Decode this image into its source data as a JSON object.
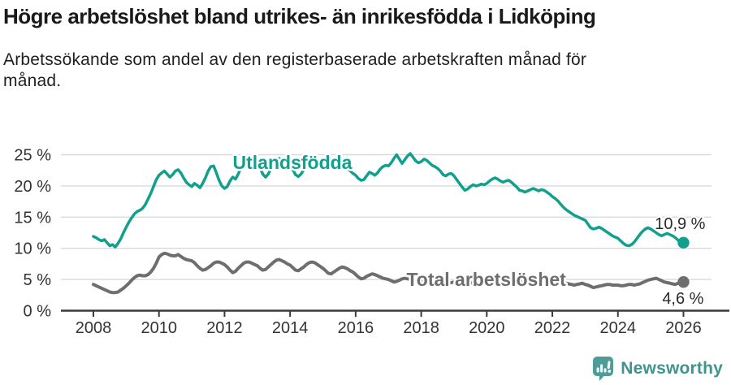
{
  "header": {
    "title": "Högre arbetslöshet bland utrikes- än inrikesfödda i Lidköping",
    "subtitle": "Arbetssökande som andel av den registerbaserade arbetskraften månad för\nmånad."
  },
  "colors": {
    "title_text": "#1a1a1a",
    "axis_text": "#333333",
    "grid_line": "#d9d9d9",
    "axis_line": "#3a3a3a",
    "background": "#ffffff"
  },
  "chart_data": {
    "type": "line",
    "title": "Högre arbetslöshet bland utrikes- än inrikesfödda i Lidköping",
    "subtitle": "Arbetssökande som andel av den registerbaserade arbetskraften månad för månad.",
    "x_unit": "month",
    "x_start_year": 2008,
    "x_end_year": 2026,
    "x_tick_years": [
      2008,
      2010,
      2012,
      2014,
      2016,
      2018,
      2020,
      2022,
      2024,
      2026
    ],
    "y_ticks": [
      0,
      5,
      10,
      15,
      20,
      25
    ],
    "y_tick_suffix": " %",
    "ylim": [
      0,
      26.5
    ],
    "grid": true,
    "legend_position": "inline-labels",
    "series": [
      {
        "name": "Utlandsfödda",
        "color": "#12a08e",
        "line_width": 3.5,
        "end_label": "10,9 %",
        "last_value": 10.9,
        "label_anchor": {
          "year": 2012.25,
          "percent": 22.7
        },
        "end_label_offset": {
          "dx": 27,
          "dy": -17
        },
        "values": [
          11.9,
          11.7,
          11.4,
          11.2,
          11.4,
          10.9,
          10.4,
          10.6,
          10.2,
          10.8,
          11.5,
          12.5,
          13.4,
          14.2,
          14.9,
          15.5,
          15.9,
          16.1,
          16.4,
          17.0,
          17.9,
          18.8,
          19.9,
          21.0,
          21.7,
          22.1,
          22.4,
          21.9,
          21.4,
          21.8,
          22.4,
          22.6,
          22.1,
          21.3,
          20.6,
          20.2,
          19.9,
          20.4,
          20.1,
          19.7,
          20.4,
          21.3,
          22.4,
          23.1,
          23.2,
          22.1,
          20.9,
          20.0,
          19.6,
          19.9,
          20.8,
          21.4,
          21.1,
          21.9,
          22.9,
          23.7,
          24.2,
          24.4,
          24.4,
          24.3,
          23.8,
          22.9,
          21.9,
          21.4,
          21.9,
          22.8,
          23.6,
          24.2,
          24.4,
          24.3,
          23.9,
          23.5,
          23.3,
          22.6,
          21.8,
          21.5,
          21.9,
          22.6,
          23.3,
          23.8,
          24.1,
          24.2,
          24.0,
          23.8,
          23.6,
          23.3,
          23.1,
          23.3,
          23.6,
          23.8,
          23.9,
          23.7,
          23.3,
          22.8,
          22.4,
          22.0,
          21.7,
          21.2,
          20.9,
          21.0,
          21.6,
          22.2,
          22.0,
          21.7,
          22.1,
          22.7,
          23.1,
          23.3,
          23.2,
          23.7,
          24.4,
          25.0,
          24.3,
          23.6,
          24.2,
          24.8,
          25.2,
          24.6,
          24.0,
          23.7,
          23.9,
          24.3,
          24.1,
          23.7,
          23.3,
          23.1,
          22.8,
          22.4,
          21.8,
          21.6,
          21.9,
          22.0,
          21.6,
          21.0,
          20.4,
          19.8,
          19.3,
          19.5,
          19.9,
          20.2,
          20.0,
          20.1,
          20.3,
          20.2,
          20.4,
          20.8,
          21.1,
          21.3,
          21.1,
          20.8,
          20.6,
          20.8,
          20.9,
          20.6,
          20.2,
          19.8,
          19.3,
          19.2,
          19.0,
          19.2,
          19.4,
          19.6,
          19.4,
          19.2,
          19.4,
          19.3,
          19.0,
          18.7,
          18.3,
          18.0,
          17.6,
          17.1,
          16.6,
          16.2,
          15.9,
          15.6,
          15.3,
          15.1,
          14.9,
          14.7,
          14.5,
          13.9,
          13.3,
          13.1,
          13.2,
          13.4,
          13.2,
          12.9,
          12.6,
          12.3,
          12.0,
          11.8,
          11.6,
          11.2,
          10.8,
          10.5,
          10.4,
          10.6,
          11.0,
          11.6,
          12.2,
          12.7,
          13.1,
          13.3,
          13.1,
          12.8,
          12.5,
          12.2,
          12.0,
          12.2,
          12.4,
          12.2,
          12.0,
          11.7,
          11.3,
          11.1,
          10.9
        ]
      },
      {
        "name": "Total arbetslöshet",
        "color": "#6e6e6e",
        "line_width": 4,
        "end_label": "4,6 %",
        "last_value": 4.6,
        "label_anchor": {
          "year": 2017.55,
          "percent": 4.0
        },
        "end_label_offset": {
          "dx": 25,
          "dy": 27
        },
        "values": [
          4.2,
          4.0,
          3.8,
          3.6,
          3.4,
          3.2,
          3.0,
          2.9,
          2.9,
          3.0,
          3.3,
          3.6,
          4.0,
          4.4,
          4.9,
          5.3,
          5.6,
          5.7,
          5.6,
          5.6,
          5.8,
          6.2,
          6.8,
          7.6,
          8.6,
          9.0,
          9.2,
          9.1,
          8.9,
          8.8,
          8.8,
          9.0,
          8.7,
          8.4,
          8.2,
          8.1,
          8.0,
          7.7,
          7.2,
          6.8,
          6.5,
          6.6,
          6.9,
          7.2,
          7.6,
          7.8,
          7.8,
          7.6,
          7.4,
          7.0,
          6.5,
          6.1,
          6.3,
          6.8,
          7.2,
          7.6,
          7.8,
          7.8,
          7.6,
          7.4,
          7.2,
          6.8,
          6.5,
          6.6,
          7.0,
          7.4,
          7.8,
          8.1,
          8.2,
          8.0,
          7.8,
          7.5,
          7.3,
          6.9,
          6.5,
          6.4,
          6.7,
          7.0,
          7.4,
          7.7,
          7.8,
          7.7,
          7.4,
          7.1,
          6.8,
          6.4,
          6.0,
          5.9,
          6.2,
          6.5,
          6.8,
          7.0,
          6.9,
          6.7,
          6.4,
          6.2,
          5.8,
          5.4,
          5.1,
          5.2,
          5.5,
          5.7,
          5.9,
          5.8,
          5.6,
          5.4,
          5.2,
          5.1,
          5.0,
          4.8,
          4.6,
          4.7,
          4.9,
          5.1,
          5.2,
          5.1,
          5.0,
          4.9,
          4.8,
          4.8,
          4.9,
          4.8,
          4.7,
          4.5,
          4.4,
          4.5,
          4.6,
          4.5,
          4.4,
          4.3,
          4.4,
          4.5,
          4.6,
          4.5,
          4.4,
          4.3,
          4.2,
          4.3,
          4.4,
          4.5,
          4.4,
          4.5,
          4.6,
          4.7,
          4.9,
          5.0,
          5.2,
          5.3,
          5.2,
          5.1,
          5.0,
          4.9,
          4.8,
          4.7,
          4.6,
          4.6,
          4.6,
          4.7,
          4.6,
          4.5,
          4.4,
          4.4,
          4.5,
          4.4,
          4.3,
          4.3,
          4.2,
          4.3,
          4.3,
          4.4,
          4.3,
          4.2,
          4.3,
          4.4,
          4.3,
          4.2,
          4.1,
          4.2,
          4.3,
          4.4,
          4.2,
          4.1,
          3.9,
          3.7,
          3.8,
          3.9,
          4.0,
          4.1,
          4.2,
          4.2,
          4.1,
          4.1,
          4.1,
          4.0,
          4.0,
          4.1,
          4.2,
          4.2,
          4.1,
          4.2,
          4.3,
          4.5,
          4.7,
          4.9,
          5.0,
          5.1,
          5.2,
          5.0,
          4.8,
          4.6,
          4.5,
          4.4,
          4.3,
          4.2,
          4.4,
          4.5,
          4.6
        ]
      }
    ]
  },
  "footer": {
    "brand_name": "Newsworthy",
    "brand_color": "#3e948f",
    "logo_icon_color": "#4d9c98",
    "logo_icon": "bar-chart-speech-bubble"
  }
}
